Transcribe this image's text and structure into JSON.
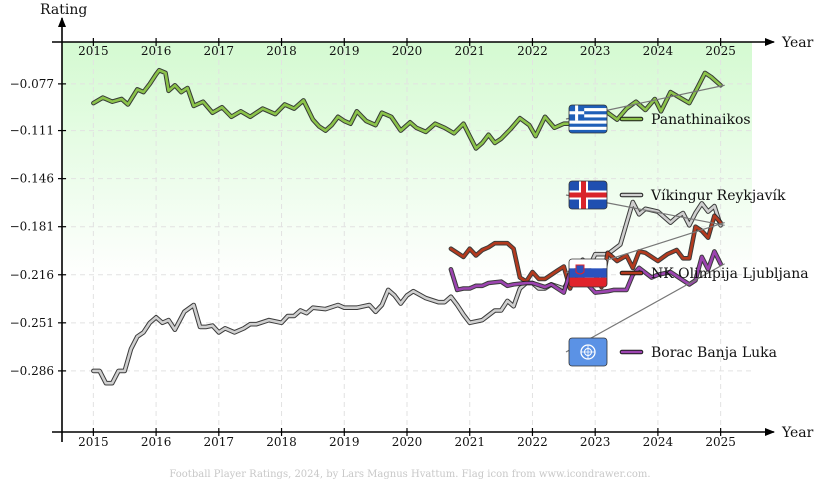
{
  "chart_data": {
    "type": "line",
    "ylabel": "Rating",
    "xlabel": "Year",
    "x_ticks": [
      "2015",
      "2016",
      "2017",
      "2018",
      "2019",
      "2020",
      "2021",
      "2022",
      "2023",
      "2024",
      "2025"
    ],
    "y_ticks": [
      "−0.077",
      "−0.111",
      "−0.146",
      "−0.181",
      "−0.216",
      "−0.251",
      "−0.286"
    ],
    "y_tick_values": [
      -0.077,
      -0.111,
      -0.146,
      -0.181,
      -0.216,
      -0.251,
      -0.286
    ],
    "xlim": [
      2014.5,
      2025.5
    ],
    "ylim": [
      -0.3305,
      -0.0465
    ],
    "grid": true,
    "legend_placement": "right",
    "footer": "Football Player Ratings, 2024, by Lars Magnus Hvattum. Flag icon from www.icondrawer.com.",
    "series": [
      {
        "name": "Panathinaikos",
        "color": "#8bc34a",
        "flag": "greece-flag-icon",
        "x": [
          2015.0,
          2015.15,
          2015.3,
          2015.45,
          2015.55,
          2015.7,
          2015.8,
          2015.9,
          2016.0,
          2016.05,
          2016.15,
          2016.2,
          2016.3,
          2016.4,
          2016.5,
          2016.6,
          2016.75,
          2016.9,
          2017.05,
          2017.2,
          2017.35,
          2017.5,
          2017.7,
          2017.9,
          2018.05,
          2018.2,
          2018.35,
          2018.5,
          2018.6,
          2018.7,
          2018.8,
          2018.9,
          2019.0,
          2019.1,
          2019.2,
          2019.35,
          2019.5,
          2019.6,
          2019.75,
          2019.9,
          2020.05,
          2020.15,
          2020.3,
          2020.45,
          2020.6,
          2020.75,
          2020.9,
          2021.0,
          2021.1,
          2021.2,
          2021.3,
          2021.4,
          2021.5,
          2021.65,
          2021.8,
          2021.95,
          2022.05,
          2022.2,
          2022.35,
          2022.5,
          2022.6,
          2022.75,
          2022.9,
          2023.05,
          2023.2,
          2023.35,
          2023.5,
          2023.65,
          2023.8,
          2023.95,
          2024.05,
          2024.2,
          2024.35,
          2024.5,
          2024.65,
          2024.75,
          2024.85,
          2025.0
        ],
        "y": [
          -0.091,
          -0.087,
          -0.09,
          -0.088,
          -0.092,
          -0.081,
          -0.083,
          -0.077,
          -0.07,
          -0.067,
          -0.069,
          -0.082,
          -0.078,
          -0.083,
          -0.08,
          -0.093,
          -0.09,
          -0.098,
          -0.094,
          -0.101,
          -0.097,
          -0.101,
          -0.095,
          -0.099,
          -0.092,
          -0.095,
          -0.089,
          -0.103,
          -0.108,
          -0.111,
          -0.107,
          -0.101,
          -0.104,
          -0.106,
          -0.097,
          -0.104,
          -0.107,
          -0.098,
          -0.101,
          -0.111,
          -0.105,
          -0.109,
          -0.112,
          -0.106,
          -0.109,
          -0.113,
          -0.106,
          -0.115,
          -0.124,
          -0.12,
          -0.114,
          -0.12,
          -0.117,
          -0.11,
          -0.102,
          -0.107,
          -0.115,
          -0.101,
          -0.109,
          -0.106,
          -0.106,
          -0.095,
          -0.101,
          -0.101,
          -0.098,
          -0.103,
          -0.095,
          -0.09,
          -0.096,
          -0.088,
          -0.097,
          -0.083,
          -0.087,
          -0.091,
          -0.078,
          -0.069,
          -0.072,
          -0.078
        ]
      },
      {
        "name": "Víkingur Reykjavík",
        "color": "#444444",
        "flag": "iceland-flag-icon",
        "x": [
          2015.0,
          2015.1,
          2015.2,
          2015.3,
          2015.4,
          2015.5,
          2015.6,
          2015.7,
          2015.8,
          2015.9,
          2016.0,
          2016.1,
          2016.2,
          2016.3,
          2016.45,
          2016.6,
          2016.7,
          2016.8,
          2016.9,
          2017.0,
          2017.1,
          2017.25,
          2017.4,
          2017.5,
          2017.6,
          2017.8,
          2018.0,
          2018.1,
          2018.2,
          2018.3,
          2018.4,
          2018.5,
          2018.7,
          2018.9,
          2019.0,
          2019.2,
          2019.4,
          2019.5,
          2019.6,
          2019.7,
          2019.8,
          2019.9,
          2020.0,
          2020.1,
          2020.3,
          2020.5,
          2020.6,
          2020.7,
          2020.8,
          2020.9,
          2021.0,
          2021.2,
          2021.4,
          2021.5,
          2021.6,
          2021.7,
          2021.8,
          2021.9,
          2022.0,
          2022.1,
          2022.2,
          2022.3,
          2022.5,
          2022.7,
          2022.8,
          2022.9,
          2023.0,
          2023.2,
          2023.4,
          2023.6,
          2023.7,
          2023.8,
          2024.0,
          2024.2,
          2024.3,
          2024.4,
          2024.5,
          2024.6,
          2024.7,
          2024.8,
          2024.9,
          2025.0
        ],
        "y": [
          -0.286,
          -0.286,
          -0.295,
          -0.295,
          -0.286,
          -0.286,
          -0.27,
          -0.261,
          -0.258,
          -0.251,
          -0.247,
          -0.251,
          -0.249,
          -0.256,
          -0.243,
          -0.238,
          -0.254,
          -0.254,
          -0.253,
          -0.258,
          -0.255,
          -0.258,
          -0.255,
          -0.252,
          -0.252,
          -0.249,
          -0.251,
          -0.246,
          -0.246,
          -0.242,
          -0.244,
          -0.24,
          -0.241,
          -0.238,
          -0.24,
          -0.24,
          -0.238,
          -0.243,
          -0.238,
          -0.227,
          -0.231,
          -0.237,
          -0.231,
          -0.228,
          -0.233,
          -0.236,
          -0.236,
          -0.232,
          -0.238,
          -0.245,
          -0.251,
          -0.249,
          -0.242,
          -0.242,
          -0.235,
          -0.239,
          -0.226,
          -0.222,
          -0.222,
          -0.226,
          -0.226,
          -0.223,
          -0.226,
          -0.212,
          -0.205,
          -0.211,
          -0.201,
          -0.201,
          -0.194,
          -0.163,
          -0.172,
          -0.168,
          -0.17,
          -0.178,
          -0.174,
          -0.171,
          -0.18,
          -0.171,
          -0.164,
          -0.17,
          -0.166,
          -0.18
        ]
      },
      {
        "name": "NK Olimpija Ljubljana",
        "color": "#b33a1e",
        "flag": "slovenia-flag-icon",
        "x": [
          2020.7,
          2020.8,
          2020.9,
          2021.0,
          2021.1,
          2021.2,
          2021.3,
          2021.4,
          2021.6,
          2021.7,
          2021.8,
          2021.9,
          2022.0,
          2022.1,
          2022.2,
          2022.4,
          2022.5,
          2022.6,
          2022.7,
          2022.8,
          2022.9,
          2023.0,
          2023.1,
          2023.2,
          2023.35,
          2023.5,
          2023.6,
          2023.7,
          2023.8,
          2024.0,
          2024.15,
          2024.3,
          2024.4,
          2024.5,
          2024.6,
          2024.7,
          2024.8,
          2024.9,
          2025.0
        ],
        "y": [
          -0.197,
          -0.2,
          -0.203,
          -0.197,
          -0.202,
          -0.198,
          -0.196,
          -0.193,
          -0.193,
          -0.197,
          -0.218,
          -0.221,
          -0.214,
          -0.219,
          -0.219,
          -0.213,
          -0.21,
          -0.226,
          -0.212,
          -0.211,
          -0.212,
          -0.216,
          -0.225,
          -0.2,
          -0.206,
          -0.202,
          -0.211,
          -0.199,
          -0.2,
          -0.206,
          -0.201,
          -0.198,
          -0.204,
          -0.204,
          -0.181,
          -0.184,
          -0.189,
          -0.173,
          -0.178
        ]
      },
      {
        "name": "Borac Banja Luka",
        "color": "#9c44b0",
        "flag": "un-flag-icon",
        "x": [
          2020.7,
          2020.8,
          2020.9,
          2021.0,
          2021.1,
          2021.2,
          2021.3,
          2021.5,
          2021.6,
          2021.7,
          2021.9,
          2022.0,
          2022.2,
          2022.3,
          2022.4,
          2022.5,
          2022.6,
          2022.8,
          2023.0,
          2023.2,
          2023.3,
          2023.5,
          2023.6,
          2023.7,
          2023.9,
          2024.0,
          2024.2,
          2024.4,
          2024.5,
          2024.6,
          2024.7,
          2024.8,
          2024.9,
          2025.0
        ],
        "y": [
          -0.212,
          -0.227,
          -0.226,
          -0.226,
          -0.224,
          -0.224,
          -0.222,
          -0.221,
          -0.224,
          -0.223,
          -0.222,
          -0.222,
          -0.225,
          -0.223,
          -0.226,
          -0.229,
          -0.214,
          -0.219,
          -0.229,
          -0.228,
          -0.227,
          -0.227,
          -0.216,
          -0.211,
          -0.218,
          -0.216,
          -0.214,
          -0.22,
          -0.223,
          -0.22,
          -0.203,
          -0.212,
          -0.199,
          -0.208
        ]
      }
    ]
  }
}
